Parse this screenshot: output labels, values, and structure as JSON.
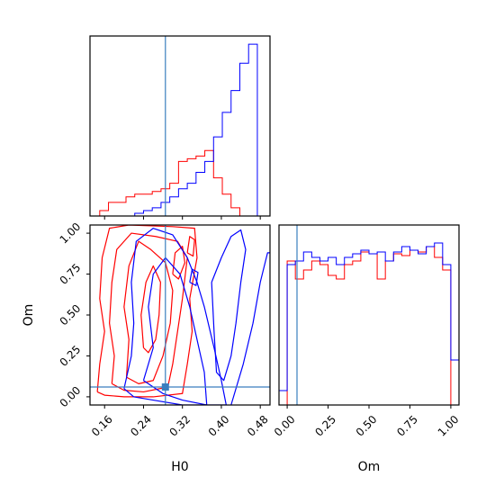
{
  "chart_data": [
    {
      "type": "histogram",
      "panel": "H0 marginal",
      "xlim": [
        0.13,
        0.5
      ],
      "truth": 0.285,
      "truth_color": "#3a7ebf",
      "bins": [
        0.132,
        0.15,
        0.168,
        0.186,
        0.204,
        0.222,
        0.24,
        0.258,
        0.276,
        0.294,
        0.312,
        0.33,
        0.348,
        0.366,
        0.384,
        0.402,
        0.42,
        0.438,
        0.456,
        0.474,
        0.492
      ],
      "series": [
        {
          "color": "#ff0000",
          "values": [
            0.0,
            0.02,
            0.05,
            0.05,
            0.07,
            0.08,
            0.08,
            0.09,
            0.1,
            0.12,
            0.2,
            0.21,
            0.22,
            0.24,
            0.14,
            0.08,
            0.03,
            0.0,
            0.0,
            0.0
          ]
        },
        {
          "color": "#0000ff",
          "values": [
            0.0,
            0.0,
            0.0,
            0.0,
            0.0,
            0.01,
            0.02,
            0.03,
            0.05,
            0.07,
            0.1,
            0.12,
            0.16,
            0.2,
            0.29,
            0.38,
            0.46,
            0.56,
            0.63,
            0.0
          ]
        }
      ]
    },
    {
      "type": "contour",
      "panel": "Om vs H0",
      "xlabel": "H0",
      "ylabel": "Om",
      "xlim": [
        0.13,
        0.5
      ],
      "ylim": [
        -0.05,
        1.05
      ],
      "xticks": [
        "0.16",
        "0.24",
        "0.32",
        "0.40",
        "0.48"
      ],
      "yticks": [
        "0.00",
        "0.25",
        "0.50",
        "0.75",
        "1.00"
      ],
      "truth": {
        "x": 0.285,
        "y": 0.06
      },
      "truth_color": "#3a7ebf",
      "series": [
        {
          "color": "#ff0000",
          "contours": [
            [
              [
                0.145,
                0.03
              ],
              [
                0.15,
                0.2
              ],
              [
                0.16,
                0.4
              ],
              [
                0.15,
                0.6
              ],
              [
                0.155,
                0.85
              ],
              [
                0.17,
                1.03
              ],
              [
                0.21,
                1.05
              ],
              [
                0.3,
                1.04
              ],
              [
                0.345,
                1.03
              ],
              [
                0.35,
                0.85
              ],
              [
                0.335,
                0.6
              ],
              [
                0.34,
                0.4
              ],
              [
                0.33,
                0.2
              ],
              [
                0.32,
                0.02
              ],
              [
                0.26,
                0.0
              ],
              [
                0.2,
                0.0
              ],
              [
                0.16,
                0.01
              ],
              [
                0.145,
                0.03
              ]
            ],
            [
              [
                0.175,
                0.08
              ],
              [
                0.18,
                0.25
              ],
              [
                0.17,
                0.45
              ],
              [
                0.175,
                0.7
              ],
              [
                0.185,
                0.9
              ],
              [
                0.215,
                1.0
              ],
              [
                0.265,
                0.98
              ],
              [
                0.31,
                0.95
              ],
              [
                0.33,
                0.85
              ],
              [
                0.32,
                0.6
              ],
              [
                0.31,
                0.4
              ],
              [
                0.3,
                0.2
              ],
              [
                0.29,
                0.06
              ],
              [
                0.24,
                0.03
              ],
              [
                0.2,
                0.04
              ],
              [
                0.175,
                0.08
              ]
            ],
            [
              [
                0.205,
                0.12
              ],
              [
                0.21,
                0.35
              ],
              [
                0.2,
                0.55
              ],
              [
                0.21,
                0.8
              ],
              [
                0.23,
                0.95
              ],
              [
                0.255,
                0.9
              ],
              [
                0.285,
                0.82
              ],
              [
                0.3,
                0.65
              ],
              [
                0.295,
                0.45
              ],
              [
                0.28,
                0.25
              ],
              [
                0.26,
                0.1
              ],
              [
                0.23,
                0.08
              ],
              [
                0.205,
                0.12
              ]
            ],
            [
              [
                0.24,
                0.3
              ],
              [
                0.235,
                0.5
              ],
              [
                0.245,
                0.7
              ],
              [
                0.26,
                0.8
              ],
              [
                0.275,
                0.7
              ],
              [
                0.272,
                0.5
              ],
              [
                0.265,
                0.35
              ],
              [
                0.25,
                0.27
              ],
              [
                0.24,
                0.3
              ]
            ],
            [
              [
                0.3,
                0.75
              ],
              [
                0.305,
                0.88
              ],
              [
                0.32,
                0.92
              ],
              [
                0.325,
                0.82
              ],
              [
                0.312,
                0.72
              ],
              [
                0.3,
                0.75
              ]
            ],
            [
              [
                0.33,
                0.88
              ],
              [
                0.335,
                0.98
              ],
              [
                0.345,
                0.96
              ],
              [
                0.342,
                0.86
              ],
              [
                0.33,
                0.88
              ]
            ]
          ]
        },
        {
          "color": "#0000ff",
          "contours": [
            [
              [
                0.2,
                0.05
              ],
              [
                0.215,
                0.25
              ],
              [
                0.22,
                0.45
              ],
              [
                0.215,
                0.7
              ],
              [
                0.225,
                0.95
              ],
              [
                0.26,
                1.03
              ],
              [
                0.3,
                0.99
              ],
              [
                0.33,
                0.85
              ],
              [
                0.35,
                0.7
              ],
              [
                0.365,
                0.55
              ],
              [
                0.385,
                0.3
              ],
              [
                0.4,
                0.1
              ],
              [
                0.41,
                -0.05
              ],
              [
                0.32,
                -0.05
              ],
              [
                0.26,
                -0.02
              ],
              [
                0.22,
                0.0
              ],
              [
                0.2,
                0.05
              ]
            ],
            [
              [
                0.24,
                0.1
              ],
              [
                0.26,
                0.3
              ],
              [
                0.25,
                0.55
              ],
              [
                0.26,
                0.75
              ],
              [
                0.285,
                0.85
              ],
              [
                0.315,
                0.75
              ],
              [
                0.335,
                0.55
              ],
              [
                0.35,
                0.35
              ],
              [
                0.365,
                0.15
              ],
              [
                0.37,
                -0.05
              ],
              [
                0.32,
                -0.02
              ],
              [
                0.28,
                0.02
              ],
              [
                0.24,
                0.1
              ]
            ],
            [
              [
                0.38,
                0.7
              ],
              [
                0.4,
                0.85
              ],
              [
                0.42,
                0.98
              ],
              [
                0.44,
                1.02
              ],
              [
                0.45,
                0.9
              ],
              [
                0.44,
                0.7
              ],
              [
                0.43,
                0.45
              ],
              [
                0.42,
                0.25
              ],
              [
                0.405,
                0.1
              ],
              [
                0.39,
                0.15
              ],
              [
                0.385,
                0.4
              ],
              [
                0.38,
                0.7
              ]
            ],
            [
              [
                0.42,
                -0.05
              ],
              [
                0.445,
                0.2
              ],
              [
                0.465,
                0.45
              ],
              [
                0.48,
                0.7
              ],
              [
                0.495,
                0.88
              ],
              [
                0.5,
                0.88
              ]
            ],
            [
              [
                0.335,
                0.7
              ],
              [
                0.34,
                0.78
              ],
              [
                0.352,
                0.76
              ],
              [
                0.348,
                0.68
              ],
              [
                0.335,
                0.7
              ]
            ]
          ]
        }
      ]
    },
    {
      "type": "histogram",
      "panel": "Om marginal",
      "xlabel": "Om",
      "xlim": [
        -0.05,
        1.05
      ],
      "xticks": [
        "0.00",
        "0.25",
        "0.50",
        "0.75",
        "1.00"
      ],
      "truth": 0.06,
      "truth_color": "#3a7ebf",
      "bins": [
        -0.05,
        0.0,
        0.05,
        0.1,
        0.15,
        0.2,
        0.25,
        0.3,
        0.35,
        0.4,
        0.45,
        0.5,
        0.55,
        0.6,
        0.65,
        0.7,
        0.75,
        0.8,
        0.85,
        0.9,
        0.95,
        1.0,
        1.05
      ],
      "series": [
        {
          "color": "#ff0000",
          "values": [
            0.0,
            0.8,
            0.7,
            0.75,
            0.8,
            0.78,
            0.72,
            0.7,
            0.78,
            0.8,
            0.85,
            0.84,
            0.7,
            0.8,
            0.84,
            0.83,
            0.86,
            0.85,
            0.88,
            0.82,
            0.75,
            0.0
          ]
        },
        {
          "color": "#0000ff",
          "values": [
            0.08,
            0.78,
            0.8,
            0.85,
            0.82,
            0.8,
            0.82,
            0.78,
            0.82,
            0.84,
            0.86,
            0.84,
            0.85,
            0.8,
            0.85,
            0.88,
            0.86,
            0.84,
            0.88,
            0.9,
            0.78,
            0.25
          ]
        }
      ]
    }
  ]
}
